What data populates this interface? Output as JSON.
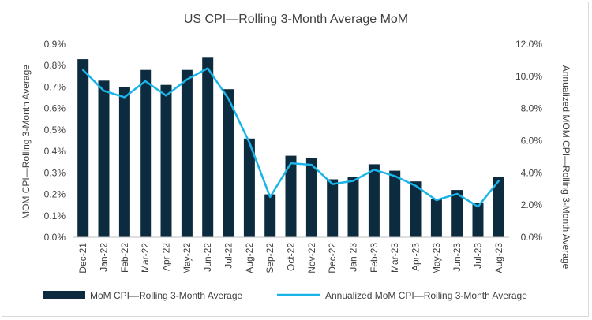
{
  "chart_data": {
    "type": "bar",
    "title": "US CPI—Rolling 3-Month Average MoM",
    "categories": [
      "Dec-21",
      "Jan-22",
      "Feb-22",
      "Mar-22",
      "Apr-22",
      "May-22",
      "Jun-22",
      "Jul-22",
      "Aug-22",
      "Sep-22",
      "Oct-22",
      "Nov-22",
      "Dec-22",
      "Jan-23",
      "Feb-23",
      "Mar-23",
      "Apr-23",
      "May-23",
      "Jun-23",
      "Jul-23",
      "Aug-23"
    ],
    "series": [
      {
        "name": "MoM CPI—Rolling 3-Month Average",
        "type": "bar",
        "axis": "left",
        "color": "#0d2b3e",
        "values": [
          0.83,
          0.73,
          0.7,
          0.78,
          0.71,
          0.78,
          0.84,
          0.69,
          0.46,
          0.2,
          0.38,
          0.37,
          0.27,
          0.28,
          0.34,
          0.31,
          0.26,
          0.18,
          0.22,
          0.16,
          0.28
        ]
      },
      {
        "name": "Annualized MoM CPI—Rolling 3-Month Average",
        "type": "line",
        "axis": "right",
        "color": "#1ab5e8",
        "values": [
          10.4,
          9.1,
          8.7,
          9.7,
          8.8,
          9.8,
          10.5,
          8.6,
          5.9,
          2.5,
          4.6,
          4.5,
          3.3,
          3.5,
          4.2,
          3.8,
          3.2,
          2.3,
          2.7,
          1.9,
          3.5
        ]
      }
    ],
    "yleft": {
      "label": "MOM CPI—Rolling 3-Month Average",
      "ylim": [
        0,
        0.9
      ],
      "ticks": [
        0.0,
        0.1,
        0.2,
        0.3,
        0.4,
        0.5,
        0.6,
        0.7,
        0.8,
        0.9
      ],
      "tick_labels": [
        "0.0%",
        "0.1%",
        "0.2%",
        "0.3%",
        "0.4%",
        "0.5%",
        "0.6%",
        "0.7%",
        "0.8%",
        "0.9%"
      ]
    },
    "yright": {
      "label": "Annualized MOM CPI—Rolling 3-Month Average",
      "ylim": [
        0,
        12
      ],
      "ticks": [
        0,
        2,
        4,
        6,
        8,
        10,
        12
      ],
      "tick_labels": [
        "0.0%",
        "2.0%",
        "4.0%",
        "6.0%",
        "8.0%",
        "10.0%",
        "12.0%"
      ]
    },
    "grid": false,
    "legend": {
      "position": "bottom",
      "entries": [
        "MoM CPI—Rolling 3-Month Average",
        "Annualized MoM CPI—Rolling 3-Month Average"
      ]
    }
  }
}
